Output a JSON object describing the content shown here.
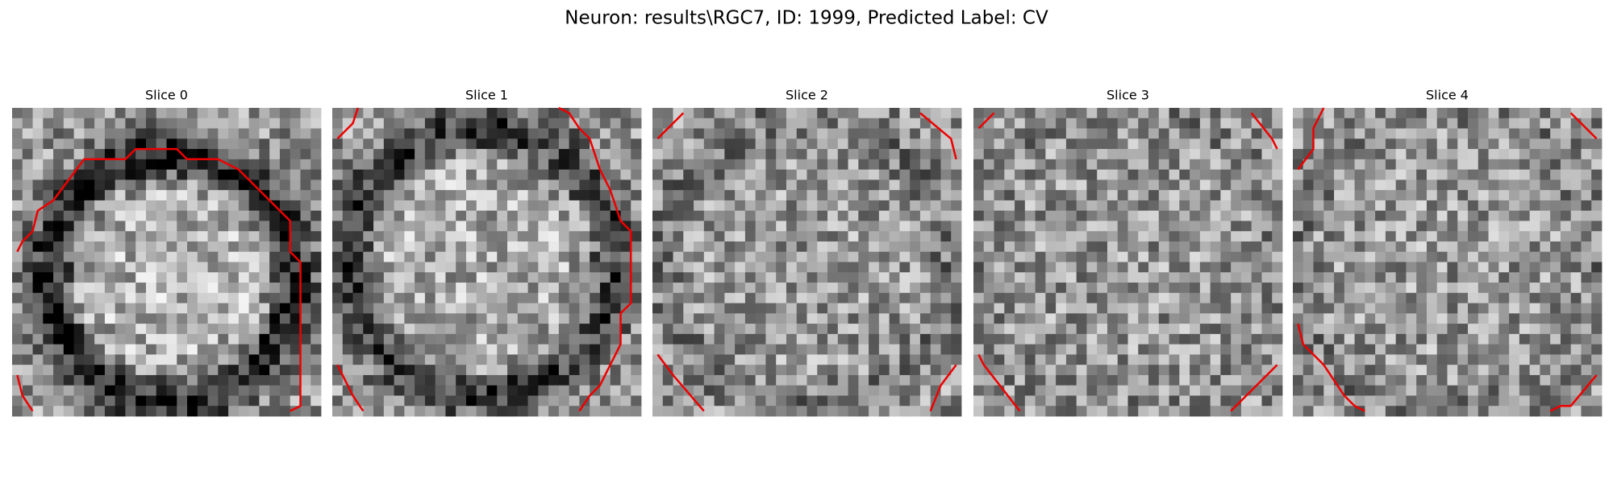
{
  "header": {
    "title": "Neuron: results\\RGC7, ID: 1999, Predicted Label: CV"
  },
  "panels": [
    {
      "title": "Slice 0"
    },
    {
      "title": "Slice 1"
    },
    {
      "title": "Slice 2"
    },
    {
      "title": "Slice 3"
    },
    {
      "title": "Slice 4"
    }
  ]
}
